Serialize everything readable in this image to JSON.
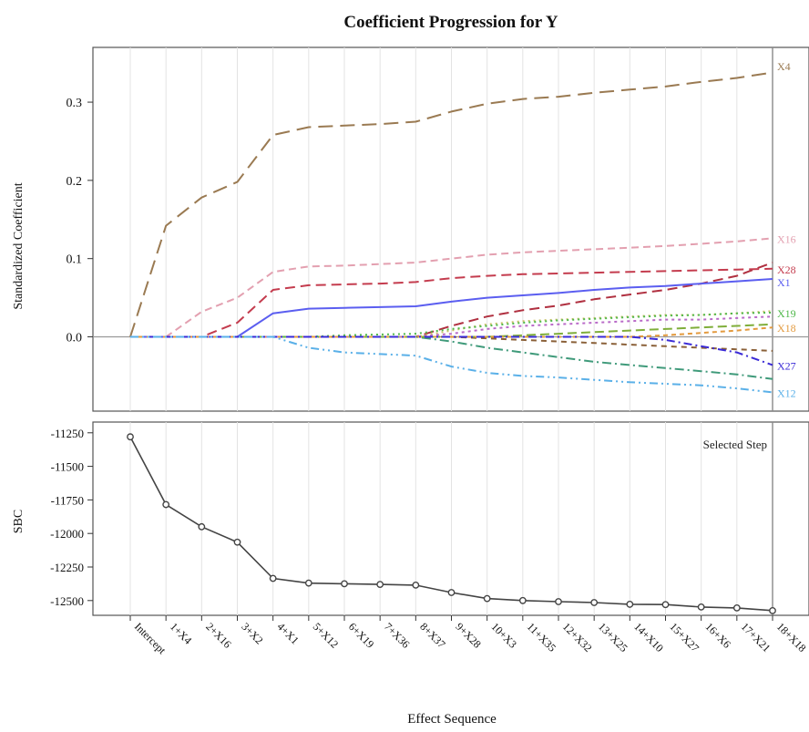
{
  "chart_data": [
    {
      "type": "line",
      "title": "Coefficient Progression for Y",
      "ylabel": "Standardized Coefficient",
      "xlabel": "",
      "ylim": [
        -0.095,
        0.37
      ],
      "yticks": [
        0.0,
        0.1,
        0.2,
        0.3
      ],
      "ytick_labels": [
        "0.0",
        "0.1",
        "0.2",
        "0.3"
      ],
      "grid": "vertical",
      "zero_line": true,
      "series": [
        {
          "name": "X4",
          "color": "#9a7a52",
          "dash": "16,8",
          "values": [
            0,
            0.142,
            0.178,
            0.198,
            0.258,
            0.268,
            0.27,
            0.272,
            0.275,
            0.288,
            0.298,
            0.304,
            0.307,
            0.312,
            0.316,
            0.32,
            0.326,
            0.331,
            0.338
          ]
        },
        {
          "name": "X16",
          "color": "#e3a0b0",
          "dash": "8,5",
          "values": [
            0,
            0,
            0.032,
            0.05,
            0.083,
            0.09,
            0.091,
            0.093,
            0.095,
            0.1,
            0.105,
            0.108,
            0.11,
            0.112,
            0.114,
            0.116,
            0.119,
            0.122,
            0.126
          ]
        },
        {
          "name": "X28",
          "color": "#c43c4e",
          "dash": "11,6",
          "values": [
            0,
            0,
            0,
            0.018,
            0.06,
            0.066,
            0.067,
            0.068,
            0.07,
            0.075,
            0.078,
            0.08,
            0.081,
            0.082,
            0.083,
            0.084,
            0.085,
            0.086,
            0.087
          ]
        },
        {
          "name": "X1",
          "color": "#5b5ef0",
          "dash": "",
          "values": [
            0,
            0,
            0,
            0,
            0.03,
            0.036,
            0.037,
            0.038,
            0.039,
            0.045,
            0.05,
            0.053,
            0.056,
            0.06,
            0.063,
            0.065,
            0.068,
            0.071,
            0.074
          ]
        },
        {
          "name": "X19",
          "color": "#4fb84a",
          "dash": "2,4",
          "values": [
            0,
            0,
            0,
            0,
            0,
            0,
            0.002,
            0.003,
            0.004,
            0.01,
            0.014,
            0.018,
            0.021,
            0.023,
            0.025,
            0.027,
            0.028,
            0.03,
            0.031
          ]
        },
        {
          "name": "X18",
          "color": "#e39a3e",
          "dash": "5,4",
          "values": [
            0,
            0,
            0,
            0,
            0,
            0,
            0,
            0,
            0,
            0,
            0,
            0,
            0,
            0,
            0,
            0.002,
            0.005,
            0.008,
            0.012
          ]
        },
        {
          "name": "X27",
          "color": "#3a2ad6",
          "dash": "9,4,2,4",
          "values": [
            0,
            0,
            0,
            0,
            0,
            0,
            0,
            0,
            0,
            0,
            0,
            0,
            0,
            0,
            0,
            -0.004,
            -0.012,
            -0.02,
            -0.036
          ]
        },
        {
          "name": "X12",
          "color": "#5ab0e8",
          "dash": "9,4,2,4,2,4",
          "values": [
            0,
            0,
            0,
            0,
            0,
            -0.014,
            -0.02,
            -0.022,
            -0.024,
            -0.038,
            -0.046,
            -0.05,
            -0.052,
            -0.055,
            -0.058,
            -0.06,
            -0.062,
            -0.066,
            -0.071
          ]
        }
      ],
      "unlabeled_series": [
        {
          "color": "#b03040",
          "dash": "11,6",
          "values": [
            0,
            0,
            0,
            0,
            0,
            0,
            0,
            0,
            0,
            0.014,
            0.026,
            0.034,
            0.04,
            0.048,
            0.054,
            0.06,
            0.068,
            0.078,
            0.095
          ]
        },
        {
          "color": "#3f9a7a",
          "dash": "10,4,2,4",
          "values": [
            0,
            0,
            0,
            0,
            0,
            0,
            0,
            0,
            0,
            -0.006,
            -0.014,
            -0.02,
            -0.026,
            -0.032,
            -0.036,
            -0.04,
            -0.044,
            -0.048,
            -0.054
          ]
        },
        {
          "color": "#8a6038",
          "dash": "6,5",
          "values": [
            0,
            0,
            0,
            0,
            0,
            0,
            0,
            0,
            0,
            0,
            -0.002,
            -0.004,
            -0.006,
            -0.008,
            -0.01,
            -0.012,
            -0.014,
            -0.016,
            -0.018
          ]
        },
        {
          "color": "#c9c26a",
          "dash": "2,4",
          "values": [
            0,
            0,
            0,
            0,
            0,
            0,
            0,
            0,
            0,
            0.008,
            0.016,
            0.02,
            0.022,
            0.024,
            0.026,
            0.028,
            0.028,
            0.03,
            0.033
          ]
        },
        {
          "color": "#b96ac8",
          "dash": "3,4",
          "values": [
            0,
            0,
            0,
            0,
            0,
            0,
            0,
            0,
            0,
            0.004,
            0.01,
            0.014,
            0.016,
            0.018,
            0.02,
            0.022,
            0.022,
            0.024,
            0.026
          ]
        },
        {
          "color": "#7fae3a",
          "dash": "10,5",
          "values": [
            0,
            0,
            0,
            0,
            0,
            0,
            0,
            0,
            0,
            0,
            0,
            0.002,
            0.004,
            0.006,
            0.008,
            0.01,
            0.012,
            0.014,
            0.016
          ]
        }
      ],
      "series_labels": [
        "X4",
        "X16",
        "X28",
        "X1",
        "X19",
        "X18",
        "X27",
        "X12"
      ],
      "categories": [
        "Intercept",
        "1+X4",
        "2+X16",
        "3+X2",
        "4+X1",
        "5+X12",
        "6+X19",
        "7+X36",
        "8+X37",
        "9+X28",
        "10+X3",
        "11+X35",
        "12+X32",
        "13+X25",
        "14+X10",
        "15+X27",
        "16+X6",
        "17+X21",
        "18+X18"
      ]
    },
    {
      "type": "line",
      "title": "",
      "ylabel": "SBC",
      "xlabel": "Effect Sequence",
      "ylim": [
        -12610,
        -11170
      ],
      "yticks": [
        -11250,
        -11500,
        -11750,
        -12000,
        -12250,
        -12500
      ],
      "ytick_labels": [
        "-11250",
        "-11500",
        "-11750",
        "-12000",
        "-12250",
        "-12500"
      ],
      "annotation": "Selected Step",
      "selected_step": "18+X18",
      "categories": [
        "Intercept",
        "1+X4",
        "2+X16",
        "3+X2",
        "4+X1",
        "5+X12",
        "6+X19",
        "7+X36",
        "8+X37",
        "9+X28",
        "10+X3",
        "11+X35",
        "12+X32",
        "13+X25",
        "14+X10",
        "15+X27",
        "16+X6",
        "17+X21",
        "18+X18"
      ],
      "series": [
        {
          "color": "#444444",
          "values": [
            -11280,
            -11785,
            -11950,
            -12065,
            -12335,
            -12370,
            -12375,
            -12380,
            -12385,
            -12440,
            -12485,
            -12500,
            -12508,
            -12515,
            -12528,
            -12530,
            -12548,
            -12555,
            -12575
          ]
        }
      ]
    }
  ]
}
